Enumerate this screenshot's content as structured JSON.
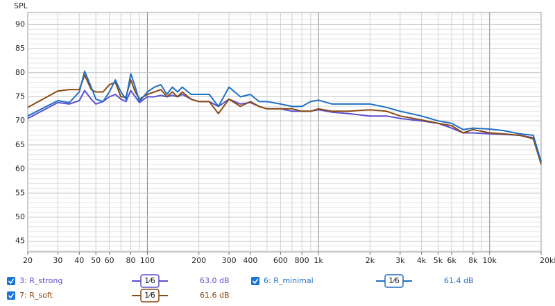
{
  "chart_data": {
    "type": "line",
    "y_label": "SPL",
    "log_x": true,
    "grid": true,
    "xlim": [
      20,
      20000
    ],
    "ylim": [
      42.8,
      92.5
    ],
    "yticks": [
      45,
      50,
      55,
      60,
      65,
      70,
      75,
      80,
      85,
      90
    ],
    "xticks": [
      20,
      30,
      40,
      50,
      60,
      80,
      100,
      200,
      300,
      400,
      600,
      800,
      {
        "value": 1000,
        "label": "1k"
      },
      {
        "value": 2000,
        "label": "2k"
      },
      {
        "value": 3000,
        "label": "3k"
      },
      {
        "value": 4000,
        "label": "4k"
      },
      {
        "value": 5000,
        "label": "5k"
      },
      {
        "value": 6000,
        "label": "6k"
      },
      {
        "value": 8000,
        "label": "8k"
      },
      {
        "value": 10000,
        "label": "10k"
      },
      {
        "value": 20000,
        "label": "20kHz"
      }
    ],
    "x": [
      20,
      30,
      35,
      40,
      43,
      47,
      50,
      55,
      60,
      65,
      70,
      75,
      80,
      85,
      90,
      100,
      110,
      120,
      130,
      140,
      150,
      160,
      180,
      200,
      230,
      260,
      300,
      350,
      400,
      450,
      500,
      600,
      700,
      800,
      900,
      1000,
      1200,
      1500,
      2000,
      2500,
      3000,
      4000,
      5000,
      6000,
      7000,
      8000,
      10000,
      12000,
      15000,
      18000,
      20000
    ],
    "series": [
      {
        "name": "3: R_strong",
        "color": "#5b4fd0",
        "smoothing": "1⁄6",
        "level": "63.0 dB",
        "values": [
          70.5,
          73.8,
          73.5,
          74.2,
          76.3,
          74.5,
          73.5,
          74,
          75,
          75.5,
          74.5,
          74,
          76.3,
          75,
          73.8,
          75,
          75,
          75.3,
          75,
          75.3,
          75,
          75.5,
          74.5,
          74,
          74,
          73,
          74.5,
          73.5,
          73.8,
          73,
          72.5,
          72.5,
          72,
          72,
          72,
          72.3,
          71.8,
          71.5,
          71,
          71,
          70.5,
          70,
          69.5,
          68.5,
          67.5,
          67.5,
          67.3,
          67.2,
          67,
          66.5,
          61.5
        ]
      },
      {
        "name": "7: R_soft",
        "color": "#8b4a12",
        "smoothing": "1⁄6",
        "level": "61.6 dB",
        "values": [
          72.8,
          76.2,
          76.5,
          76.5,
          79.5,
          76.5,
          76,
          76,
          77.5,
          78,
          75,
          75,
          78.5,
          76,
          74.5,
          75.5,
          76,
          76.5,
          75,
          76,
          75,
          76,
          74.5,
          74,
          74,
          71.5,
          74.5,
          73,
          74,
          73,
          72.5,
          72.5,
          72.5,
          72,
          72,
          72.5,
          72,
          72,
          72.3,
          72,
          71,
          70.2,
          69.5,
          69,
          67.5,
          68.2,
          67.5,
          67.3,
          67,
          66.3,
          61
        ]
      },
      {
        "name": "6: R_minimal",
        "color": "#1f6fc4",
        "smoothing": "1⁄6",
        "level": "61.4 dB",
        "values": [
          71,
          74.2,
          73.8,
          76,
          80.3,
          77,
          74.5,
          74,
          76,
          78.5,
          76,
          74.5,
          79.8,
          77,
          74,
          76,
          77,
          77.5,
          75.5,
          77,
          76,
          77,
          75.5,
          75.5,
          75.5,
          73,
          77,
          75,
          75.5,
          74,
          74,
          73.5,
          73,
          73,
          74,
          74.3,
          73.5,
          73.5,
          73.5,
          72.8,
          72,
          71,
          70,
          69.5,
          68.2,
          68.5,
          68.3,
          68,
          67.3,
          67,
          61.5
        ]
      }
    ]
  }
}
